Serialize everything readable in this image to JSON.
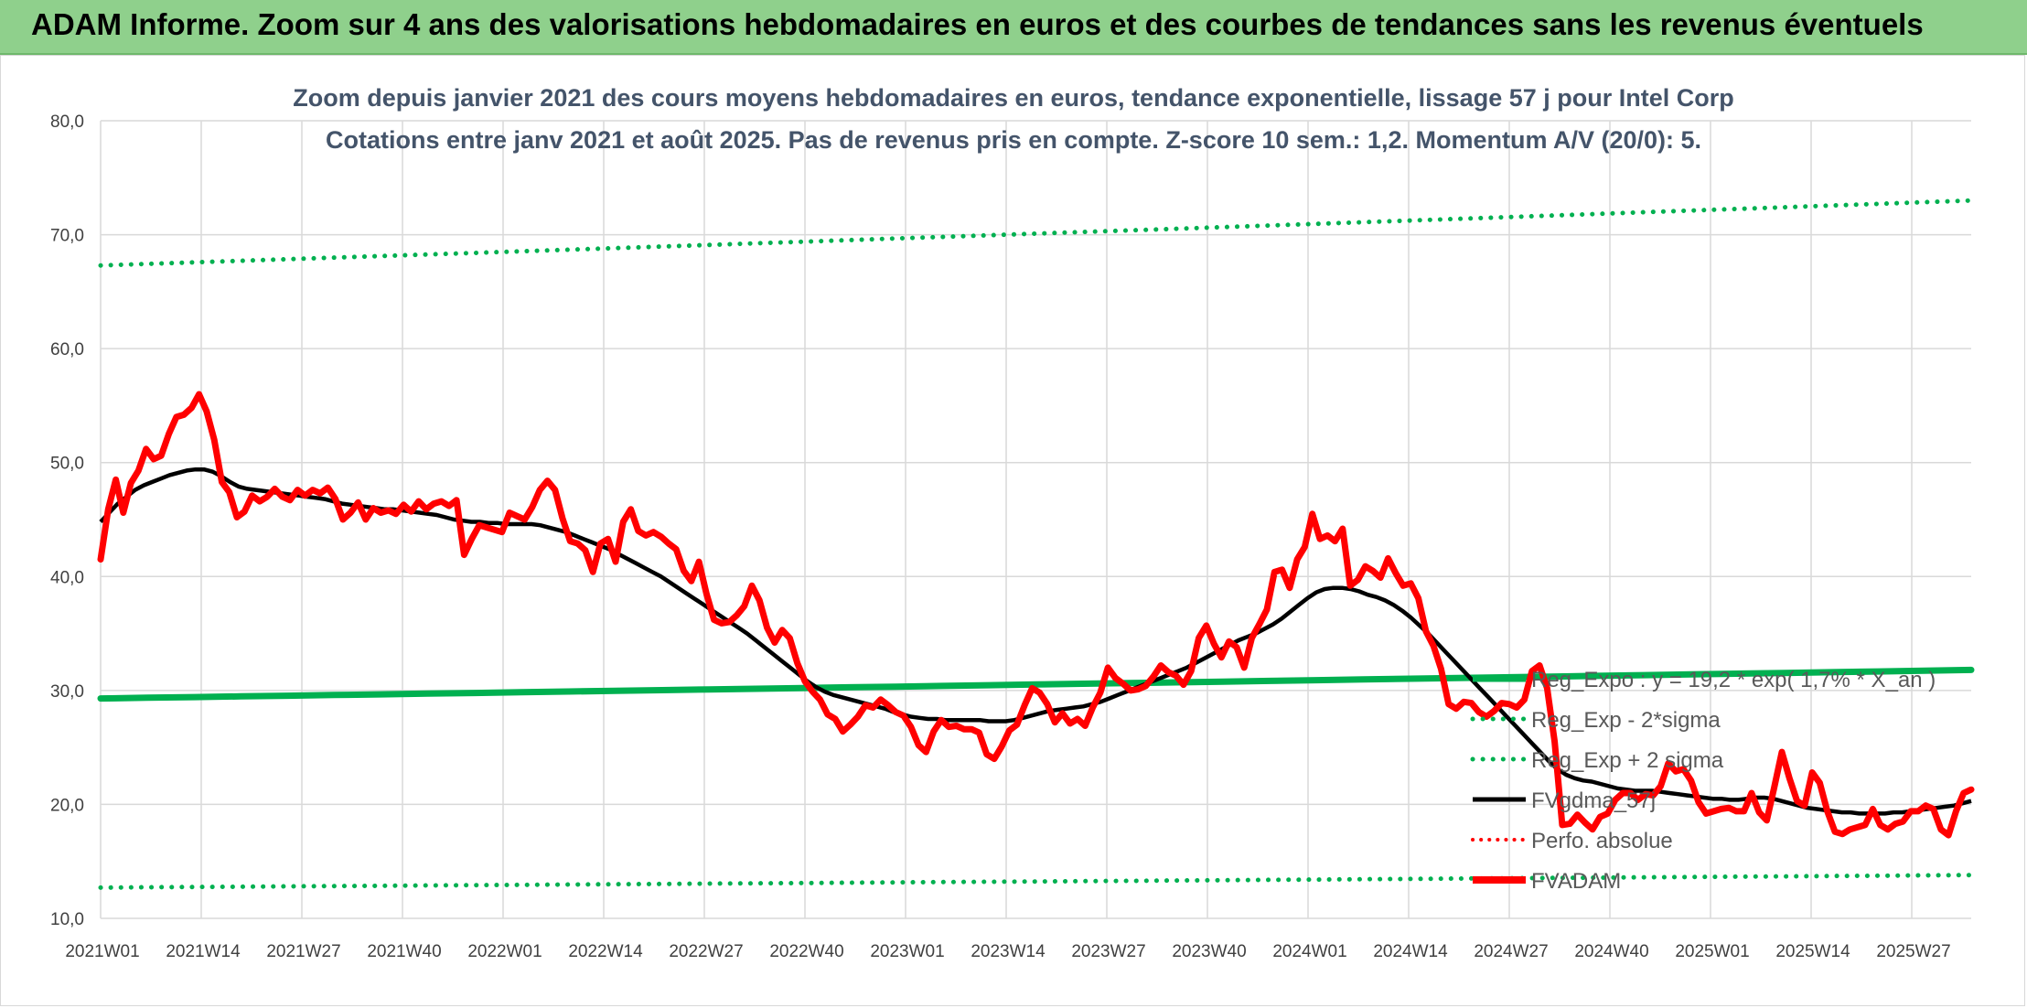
{
  "header": {
    "banner": "ADAM Informe. Zoom sur 4 ans des valorisations hebdomadaires en euros et des courbes de tendances sans les revenus éventuels"
  },
  "chart_data": {
    "type": "line",
    "title_line1": "Zoom depuis janvier 2021 des cours moyens hebdomadaires en euros, tendance exponentielle, lissage 57 j pour Intel Corp",
    "title_line2": "Cotations entre janv 2021 et août 2025. Pas de revenus pris en compte. Z-score 10 sem.: 1,2. Momentum A/V (20/0): 5.",
    "ylim": [
      10,
      80
    ],
    "y_ticks": [
      "10,0",
      "20,0",
      "30,0",
      "40,0",
      "50,0",
      "60,0",
      "70,0",
      "80,0"
    ],
    "x_labels": [
      "2021W01",
      "2021W14",
      "2021W27",
      "2021W40",
      "2022W01",
      "2022W14",
      "2022W27",
      "2022W40",
      "2023W01",
      "2023W14",
      "2023W27",
      "2023W40",
      "2024W01",
      "2024W14",
      "2024W27",
      "2024W40",
      "2025W01",
      "2025W14",
      "2025W27"
    ],
    "grid": true,
    "legend_position": "right",
    "colors": {
      "green": "#00b050",
      "red": "#ff0000",
      "black": "#000000",
      "grid": "#d9d9d9"
    },
    "series": [
      {
        "name": "Reg_Expo : y = 19,2 * exp( 1,7% * X_an )",
        "style": "solid-green",
        "from": 29.3,
        "to": 31.8
      },
      {
        "name": "Reg_Exp - 2*sigma",
        "style": "dotted-green",
        "from": 12.7,
        "to": 13.8
      },
      {
        "name": "Reg_Exp + 2 sigma",
        "style": "dotted-green",
        "from": 67.3,
        "to": 73.0
      },
      {
        "name": "FVgdma_57j",
        "style": "solid-black",
        "values": [
          44.8,
          45.6,
          46.4,
          47.0,
          47.6,
          48.0,
          48.3,
          48.6,
          48.9,
          49.1,
          49.3,
          49.4,
          49.4,
          49.2,
          48.8,
          48.3,
          47.9,
          47.7,
          47.6,
          47.5,
          47.4,
          47.3,
          47.2,
          47.1,
          47.0,
          46.9,
          46.8,
          46.6,
          46.4,
          46.3,
          46.2,
          46.1,
          46.0,
          45.9,
          45.9,
          45.8,
          45.7,
          45.6,
          45.5,
          45.4,
          45.2,
          45.0,
          44.9,
          44.8,
          44.8,
          44.7,
          44.7,
          44.6,
          44.6,
          44.6,
          44.6,
          44.5,
          44.3,
          44.1,
          43.9,
          43.6,
          43.3,
          43.0,
          42.7,
          42.4,
          42.0,
          41.6,
          41.2,
          40.8,
          40.4,
          40.0,
          39.5,
          39.0,
          38.5,
          38.0,
          37.5,
          37.0,
          36.5,
          36.0,
          35.5,
          35.0,
          34.4,
          33.8,
          33.2,
          32.6,
          32.0,
          31.4,
          30.8,
          30.3,
          29.9,
          29.6,
          29.4,
          29.2,
          29.0,
          28.8,
          28.6,
          28.4,
          28.1,
          27.9,
          27.7,
          27.6,
          27.5,
          27.5,
          27.4,
          27.4,
          27.4,
          27.4,
          27.4,
          27.3,
          27.3,
          27.3,
          27.4,
          27.6,
          27.8,
          28.0,
          28.2,
          28.3,
          28.4,
          28.5,
          28.6,
          28.8,
          29.0,
          29.3,
          29.6,
          29.9,
          30.2,
          30.5,
          30.8,
          31.1,
          31.4,
          31.7,
          32.0,
          32.4,
          32.8,
          33.2,
          33.6,
          34.0,
          34.4,
          34.7,
          35.0,
          35.4,
          35.8,
          36.3,
          36.9,
          37.5,
          38.1,
          38.6,
          38.9,
          39.0,
          39.0,
          38.9,
          38.7,
          38.4,
          38.2,
          37.9,
          37.5,
          37.0,
          36.4,
          35.7,
          35.0,
          34.2,
          33.4,
          32.6,
          31.8,
          31.0,
          30.2,
          29.4,
          28.6,
          27.8,
          27.0,
          26.2,
          25.4,
          24.6,
          23.8,
          23.1,
          22.6,
          22.3,
          22.1,
          22.0,
          21.8,
          21.6,
          21.4,
          21.3,
          21.2,
          21.2,
          21.2,
          21.1,
          21.0,
          20.9,
          20.8,
          20.7,
          20.6,
          20.5,
          20.5,
          20.4,
          20.4,
          20.5,
          20.6,
          20.6,
          20.5,
          20.3,
          20.1,
          19.9,
          19.7,
          19.6,
          19.5,
          19.4,
          19.3,
          19.3,
          19.2,
          19.2,
          19.2,
          19.2,
          19.3,
          19.3,
          19.4,
          19.5,
          19.6,
          19.7,
          19.8,
          19.9,
          20.1,
          20.3
        ]
      },
      {
        "name": "Perfo. absolue",
        "style": "dotted-red"
      },
      {
        "name": "FVADAM",
        "style": "solid-red",
        "values": [
          41.5,
          45.9,
          48.5,
          45.6,
          48.2,
          49.3,
          51.2,
          50.3,
          50.6,
          52.5,
          54.0,
          54.2,
          54.8,
          56.0,
          54.5,
          52.0,
          48.3,
          47.4,
          45.2,
          45.7,
          47.1,
          46.6,
          47.0,
          47.7,
          47.0,
          46.7,
          47.6,
          47.1,
          47.6,
          47.3,
          47.8,
          46.8,
          45.0,
          45.6,
          46.5,
          45.0,
          46.0,
          45.6,
          45.8,
          45.5,
          46.3,
          45.7,
          46.6,
          45.9,
          46.4,
          46.6,
          46.2,
          46.7,
          41.9,
          43.3,
          44.5,
          44.3,
          44.1,
          43.9,
          45.6,
          45.3,
          45.0,
          46.1,
          47.6,
          48.4,
          47.6,
          45.1,
          43.1,
          42.9,
          42.3,
          40.4,
          42.9,
          43.3,
          41.3,
          44.8,
          45.9,
          44.0,
          43.6,
          43.9,
          43.5,
          42.9,
          42.4,
          40.5,
          39.6,
          41.3,
          38.5,
          36.2,
          35.9,
          36.0,
          36.6,
          37.4,
          39.2,
          37.9,
          35.5,
          34.2,
          35.3,
          34.6,
          32.4,
          30.8,
          29.9,
          29.2,
          27.9,
          27.5,
          26.4,
          27.0,
          27.7,
          28.7,
          28.5,
          29.2,
          28.7,
          28.1,
          27.8,
          26.8,
          25.2,
          24.6,
          26.4,
          27.4,
          26.8,
          26.9,
          26.6,
          26.6,
          26.3,
          24.4,
          24.0,
          25.1,
          26.5,
          27.0,
          28.7,
          30.2,
          29.8,
          28.8,
          27.2,
          28.0,
          27.1,
          27.5,
          26.9,
          28.5,
          29.8,
          32.0,
          31.1,
          30.6,
          30.0,
          30.1,
          30.4,
          31.2,
          32.2,
          31.6,
          31.3,
          30.5,
          31.7,
          34.6,
          35.7,
          34.1,
          32.9,
          34.3,
          33.8,
          32.0,
          34.6,
          35.8,
          37.1,
          40.4,
          40.6,
          39.0,
          41.5,
          42.6,
          45.5,
          43.3,
          43.6,
          43.1,
          44.2,
          39.2,
          39.7,
          40.9,
          40.5,
          39.9,
          41.6,
          40.3,
          39.2,
          39.4,
          38.1,
          35.2,
          33.9,
          31.9,
          28.8,
          28.4,
          29.0,
          28.9,
          28.1,
          27.7,
          28.2,
          28.9,
          28.8,
          28.5,
          29.2,
          31.7,
          32.2,
          30.2,
          25.5,
          18.2,
          18.3,
          19.1,
          18.4,
          17.8,
          18.9,
          19.2,
          20.4,
          21.0,
          21.0,
          20.4,
          20.9,
          20.8,
          21.6,
          23.6,
          22.9,
          23.1,
          22.1,
          20.2,
          19.2,
          19.4,
          19.6,
          19.7,
          19.4,
          19.4,
          21.0,
          19.3,
          18.6,
          21.5,
          24.6,
          22.3,
          20.3,
          19.9,
          22.8,
          21.9,
          19.4,
          17.6,
          17.4,
          17.8,
          18.0,
          18.2,
          19.6,
          18.2,
          17.8,
          18.3,
          18.5,
          19.4,
          19.4,
          19.9,
          19.6,
          17.8,
          17.3,
          19.4,
          21.0,
          21.3
        ]
      }
    ]
  }
}
